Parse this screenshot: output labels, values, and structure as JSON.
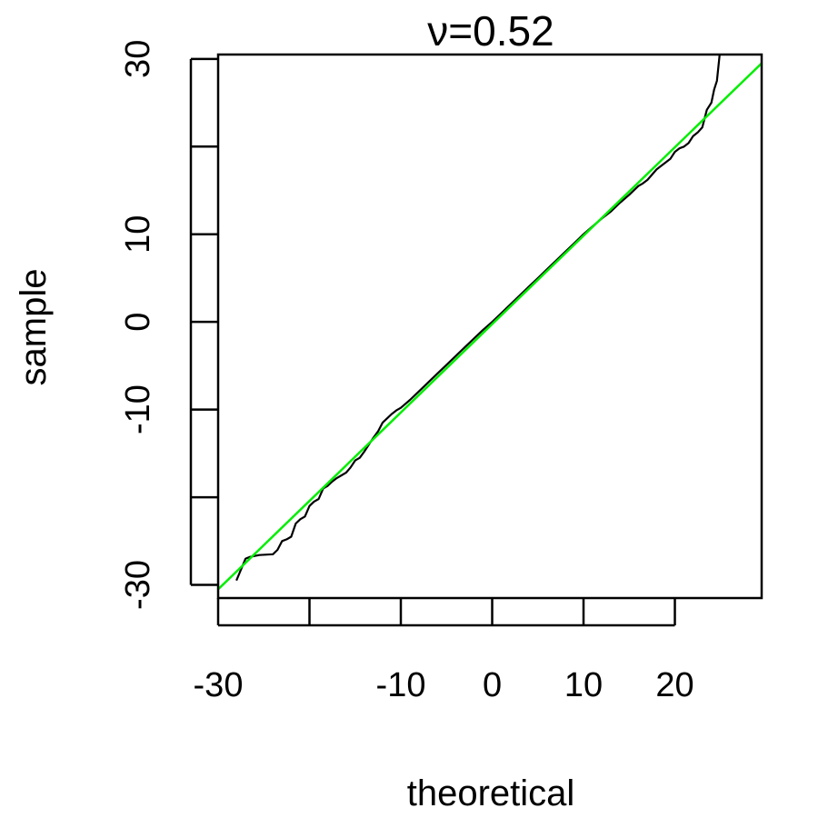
{
  "chart_data": {
    "type": "line",
    "title": "ν=0.52",
    "xlabel": "theoretical",
    "ylabel": "sample",
    "xlim": [
      -30,
      29.5
    ],
    "ylim": [
      -31.5,
      30.5
    ],
    "x_ticks": [
      {
        "value": -30,
        "label": "-30"
      },
      {
        "value": -20,
        "label": ""
      },
      {
        "value": -10,
        "label": "-10"
      },
      {
        "value": 0,
        "label": "0"
      },
      {
        "value": 10,
        "label": "10"
      },
      {
        "value": 20,
        "label": "20"
      }
    ],
    "y_ticks": [
      {
        "value": -30,
        "label": "-30"
      },
      {
        "value": -20,
        "label": ""
      },
      {
        "value": -10,
        "label": "-10"
      },
      {
        "value": 0,
        "label": "0"
      },
      {
        "value": 10,
        "label": "10"
      },
      {
        "value": 20,
        "label": ""
      },
      {
        "value": 30,
        "label": "30"
      }
    ],
    "grid": false,
    "legend": "none",
    "series": [
      {
        "color": "#000000",
        "x": [
          -28,
          -27,
          -26.5,
          -25.5,
          -24,
          -23.5,
          -23,
          -22.5,
          -22,
          -21.5,
          -21,
          -20.5,
          -20,
          -19.5,
          -19,
          -18.5,
          -18,
          -17.5,
          -17,
          -16.5,
          -16,
          -15.5,
          -15,
          -14.5,
          -14,
          -13.5,
          -13,
          -12.5,
          -12,
          -11.5,
          -11,
          -10.5,
          -10,
          -9,
          -8,
          -7,
          -6,
          -5,
          -4,
          -3,
          -2,
          -1,
          0,
          1,
          2,
          3,
          4,
          5,
          6,
          7,
          8,
          9,
          10,
          11,
          12,
          13,
          14,
          15,
          16,
          16.5,
          17,
          17.5,
          18,
          18.5,
          19,
          19.5,
          20,
          20.5,
          21,
          21.5,
          22,
          22.5,
          23,
          23.5,
          24,
          24.3,
          24.6,
          25
        ],
        "y": [
          -29.5,
          -27,
          -26.8,
          -26.6,
          -26.5,
          -26,
          -25,
          -24.8,
          -24.5,
          -23,
          -22.5,
          -22.2,
          -21,
          -20.5,
          -20.2,
          -19,
          -18.7,
          -18.2,
          -17.8,
          -17.5,
          -17.2,
          -16.6,
          -15.8,
          -15.5,
          -14.8,
          -14,
          -13.2,
          -12.5,
          -11.5,
          -11,
          -10.5,
          -10.1,
          -9.8,
          -8.9,
          -7.9,
          -6.9,
          -5.9,
          -4.9,
          -3.9,
          -2.9,
          -1.9,
          -0.9,
          0,
          1,
          2,
          3,
          4,
          5,
          6,
          7,
          8,
          9,
          10,
          10.9,
          11.8,
          12.6,
          13.6,
          14.5,
          15.5,
          15.8,
          16.2,
          16.8,
          17.4,
          17.8,
          18.2,
          18.6,
          19.4,
          19.8,
          20,
          20.4,
          21.2,
          21.6,
          22.2,
          24.2,
          25,
          26.5,
          27.5,
          31.5
        ]
      },
      {
        "color": "#00ee00",
        "x": [
          -30,
          29.5
        ],
        "y": [
          -30.5,
          29.5
        ]
      }
    ]
  }
}
